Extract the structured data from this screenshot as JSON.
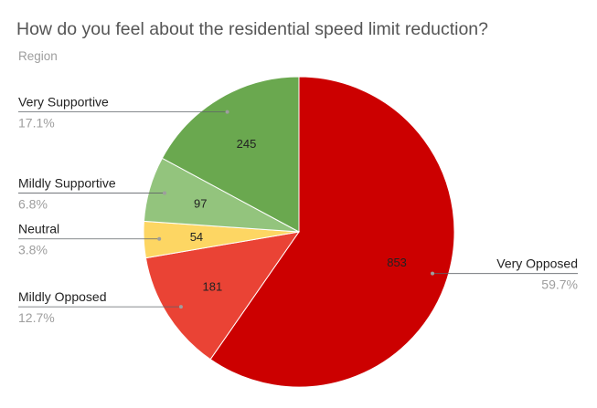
{
  "chart_data": {
    "type": "pie",
    "title": "How do you feel about the residential speed limit reduction?",
    "subtitle": "Region",
    "slices": [
      {
        "label": "Very Opposed",
        "value": 853,
        "value_label": "853",
        "percent_label": "59.7%",
        "color": "#cc0000"
      },
      {
        "label": "Mildly Opposed",
        "value": 181,
        "value_label": "181",
        "percent_label": "12.7%",
        "color": "#ea4335"
      },
      {
        "label": "Neutral",
        "value": 54,
        "value_label": "54",
        "percent_label": "3.8%",
        "color": "#fdd663"
      },
      {
        "label": "Mildly Supportive",
        "value": 97,
        "value_label": "97",
        "percent_label": "6.8%",
        "color": "#93c47d"
      },
      {
        "label": "Very Supportive",
        "value": 245,
        "value_label": "245",
        "percent_label": "17.1%",
        "color": "#6aa84f"
      }
    ],
    "legend": "none",
    "start": "top",
    "direction": "clockwise"
  }
}
